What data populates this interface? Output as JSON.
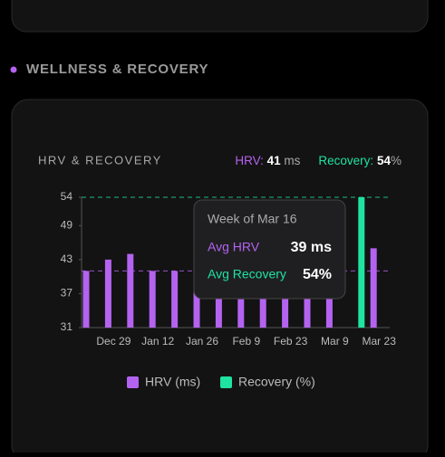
{
  "section": {
    "title": "WELLNESS & RECOVERY"
  },
  "chart_data": {
    "type": "bar",
    "title": "HRV & RECOVERY",
    "summary": {
      "hrv_label": "HRV:",
      "hrv_value": 41,
      "hrv_unit": "ms",
      "recovery_label": "Recovery:",
      "recovery_value": 54,
      "recovery_unit": "%"
    },
    "categories": [
      null,
      "Dec 29",
      null,
      "Jan 12",
      null,
      "Jan 26",
      null,
      "Feb 9",
      null,
      "Feb 23",
      null,
      "Mar 9",
      null,
      "Mar 23"
    ],
    "series": [
      {
        "name": "HRV (ms)",
        "color": "#b463f0",
        "values": [
          41,
          43,
          44,
          41,
          41,
          40,
          38,
          36,
          38,
          38,
          38,
          39,
          null,
          45
        ]
      },
      {
        "name": "Recovery (%)",
        "color": "#1fe3a0",
        "values": [
          null,
          null,
          null,
          null,
          null,
          null,
          null,
          null,
          null,
          null,
          null,
          null,
          54,
          null
        ]
      }
    ],
    "ylim": [
      31,
      54
    ],
    "yticks": [
      31,
      37,
      43,
      49,
      54
    ],
    "tooltip": {
      "title": "Week of Mar 16",
      "hrv_label": "Avg HRV",
      "hrv_value": "39 ms",
      "recovery_label": "Avg Recovery",
      "recovery_value": "54%"
    }
  }
}
